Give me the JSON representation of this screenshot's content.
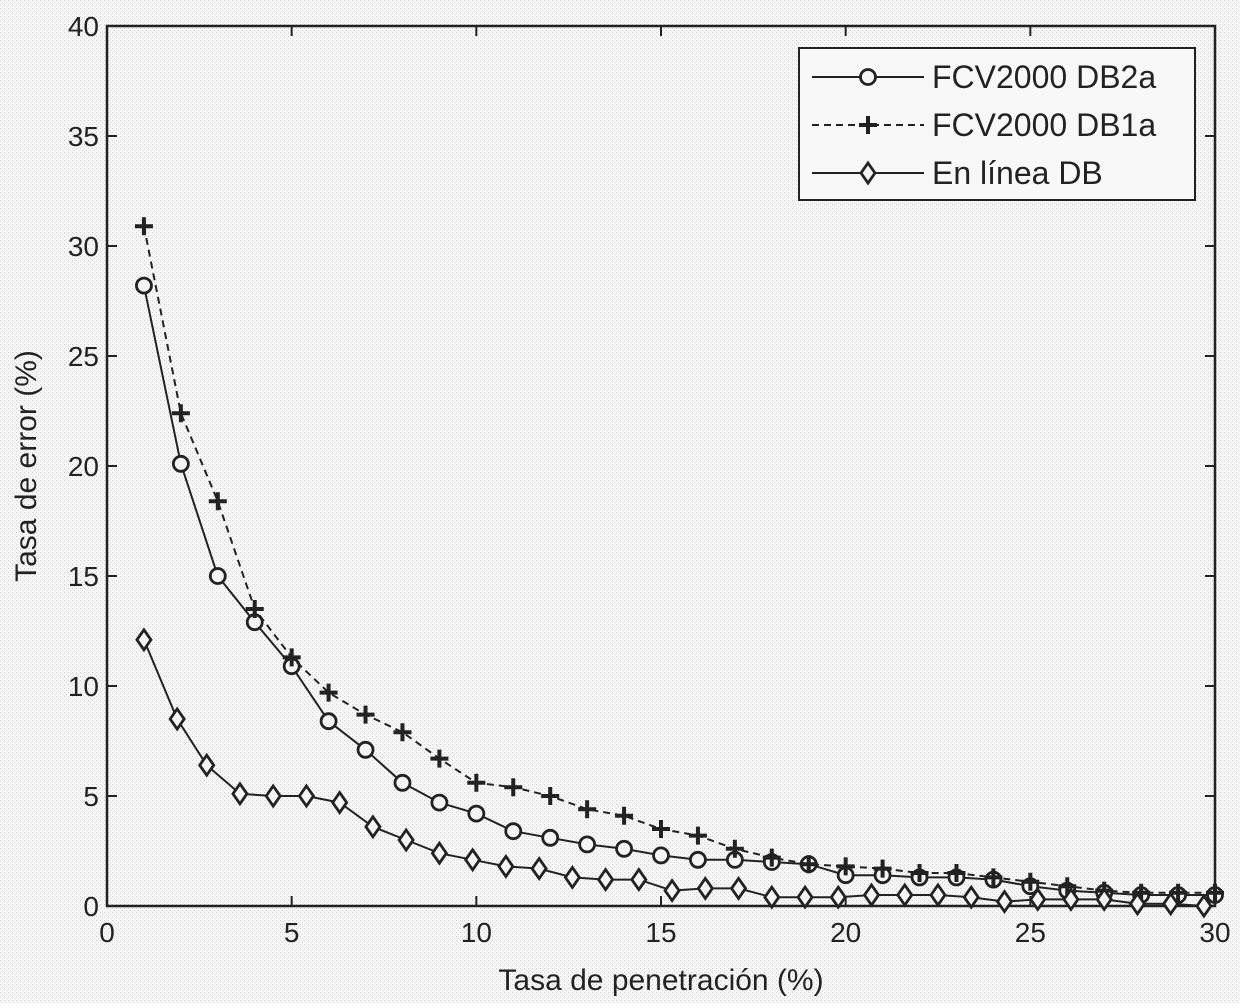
{
  "chart_data": {
    "type": "line",
    "title": "",
    "xlabel": "Tasa de penetración (%)",
    "ylabel": "Tasa de error (%)",
    "xlim": [
      0,
      30
    ],
    "ylim": [
      0,
      40
    ],
    "xticks": [
      0,
      5,
      10,
      15,
      20,
      25,
      30
    ],
    "yticks": [
      0,
      5,
      10,
      15,
      20,
      25,
      30,
      35,
      40
    ],
    "grid": false,
    "legend_position": "top-right",
    "series": [
      {
        "name": "FCV2000 DB2a",
        "marker": "circle",
        "line_style": "solid",
        "color": "#222222",
        "x": [
          1,
          2,
          3,
          4,
          5,
          6,
          7,
          8,
          9,
          10,
          11,
          12,
          13,
          14,
          15,
          16,
          17,
          18,
          19,
          20,
          21,
          22,
          23,
          24,
          25,
          26,
          27,
          28,
          29,
          30
        ],
        "y": [
          28.2,
          20.1,
          15.0,
          12.9,
          10.9,
          8.4,
          7.1,
          5.6,
          4.7,
          4.2,
          3.4,
          3.1,
          2.8,
          2.6,
          2.3,
          2.1,
          2.1,
          2.0,
          1.9,
          1.4,
          1.4,
          1.3,
          1.3,
          1.2,
          0.9,
          0.7,
          0.6,
          0.5,
          0.5,
          0.5
        ]
      },
      {
        "name": "FCV2000 DB1a",
        "marker": "plus",
        "line_style": "dashed",
        "color": "#222222",
        "x": [
          1,
          2,
          3,
          4,
          5,
          6,
          7,
          8,
          9,
          10,
          11,
          12,
          13,
          14,
          15,
          16,
          17,
          18,
          19,
          20,
          21,
          22,
          23,
          24,
          25,
          26,
          27,
          28,
          29,
          30
        ],
        "y": [
          30.9,
          22.4,
          18.4,
          13.5,
          11.3,
          9.7,
          8.7,
          7.9,
          6.7,
          5.6,
          5.4,
          5.0,
          4.4,
          4.1,
          3.5,
          3.2,
          2.6,
          2.2,
          1.9,
          1.8,
          1.7,
          1.5,
          1.5,
          1.3,
          1.1,
          0.9,
          0.7,
          0.6,
          0.6,
          0.6
        ]
      },
      {
        "name": "En línea DB",
        "marker": "diamond",
        "line_style": "solid",
        "color": "#222222",
        "x": [
          1,
          1.9,
          2.7,
          3.6,
          4.5,
          5.4,
          6.3,
          7.2,
          8.1,
          9,
          9.9,
          10.8,
          11.7,
          12.6,
          13.5,
          14.4,
          15.3,
          16.2,
          17.1,
          18,
          18.9,
          19.8,
          20.7,
          21.6,
          22.5,
          23.4,
          24.3,
          25.2,
          26.1,
          27,
          27.9,
          28.8,
          29.7
        ],
        "y": [
          12.1,
          8.5,
          6.4,
          5.1,
          5.0,
          5.0,
          4.7,
          3.6,
          3.0,
          2.4,
          2.1,
          1.8,
          1.7,
          1.3,
          1.2,
          1.2,
          0.7,
          0.8,
          0.8,
          0.4,
          0.4,
          0.4,
          0.5,
          0.5,
          0.5,
          0.4,
          0.2,
          0.3,
          0.3,
          0.3,
          0.1,
          0.1,
          0.0
        ]
      }
    ]
  }
}
